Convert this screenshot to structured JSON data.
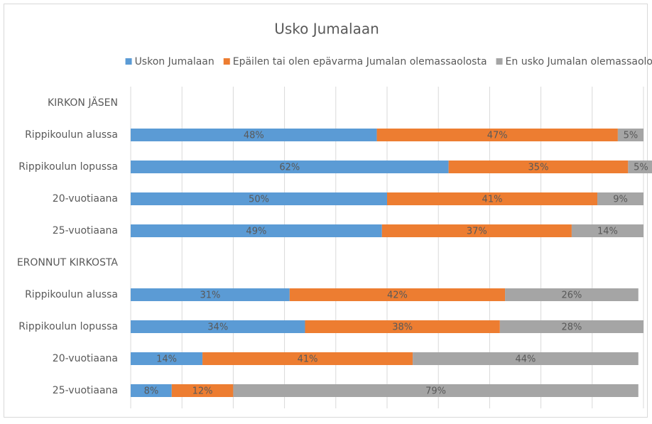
{
  "chart_data": {
    "type": "stacked-barh",
    "title": "Usko Jumalaan",
    "categories": [
      "KIRKON JÄSEN",
      "Rippikoulun alussa",
      "Rippikoulun lopussa",
      "20-vuotiaana",
      "25-vuotiaana",
      "ERONNUT KIRKOSTA",
      "Rippikoulun alussa",
      "Rippikoulun lopussa",
      "20-vuotiaana",
      "25-vuotiaana"
    ],
    "series": [
      {
        "name": "Uskon Jumalaan",
        "color": "#5b9bd5",
        "values": [
          null,
          48,
          62,
          50,
          49,
          null,
          31,
          34,
          14,
          8
        ],
        "value_labels": [
          null,
          "48%",
          "62%",
          "50%",
          "49%",
          null,
          "31%",
          "34%",
          "14%",
          "8%"
        ]
      },
      {
        "name": "Epäilen tai olen epävarma Jumalan olemassaolosta",
        "color": "#ed7d31",
        "values": [
          null,
          47,
          35,
          41,
          37,
          null,
          42,
          38,
          41,
          12
        ],
        "value_labels": [
          null,
          "47%",
          "35%",
          "41%",
          "37%",
          null,
          "42%",
          "38%",
          "41%",
          "12%"
        ]
      },
      {
        "name": "En usko Jumalan olemassaoloon",
        "color": "#a5a5a5",
        "values": [
          null,
          5,
          5,
          9,
          14,
          null,
          26,
          28,
          44,
          79
        ],
        "value_labels": [
          null,
          "5%",
          "5%",
          "9%",
          "14%",
          null,
          "26%",
          "28%",
          "44%",
          "79%"
        ]
      }
    ],
    "xlim": [
      0,
      100
    ],
    "xticks": [
      0,
      10,
      20,
      30,
      40,
      50,
      60,
      70,
      80,
      90,
      100
    ],
    "grid": true,
    "legend": "top"
  }
}
